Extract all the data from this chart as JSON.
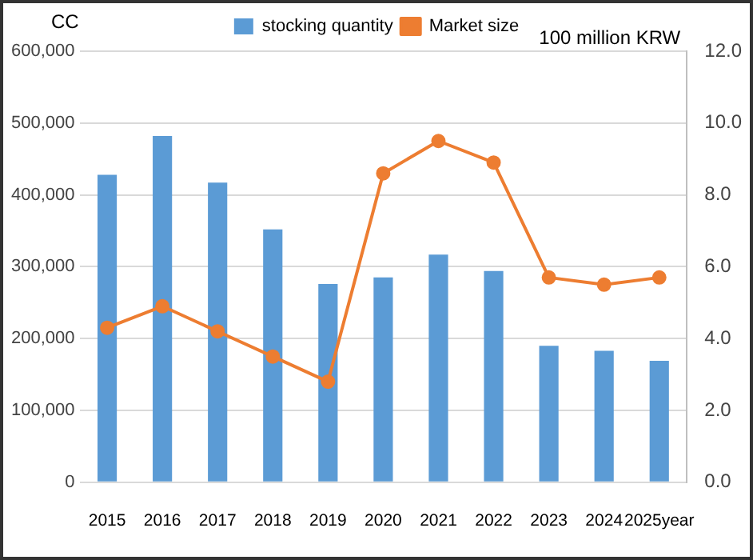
{
  "chart_data": {
    "type": "bar",
    "categories": [
      "2015",
      "2016",
      "2017",
      "2018",
      "2019",
      "2020",
      "2021",
      "2022",
      "2023",
      "2024",
      "2025year"
    ],
    "series": [
      {
        "name": "stocking quantity",
        "color": "#5b9bd5",
        "values": [
          428000,
          482000,
          417000,
          352000,
          276000,
          285000,
          317000,
          294000,
          190000,
          183000,
          169000
        ]
      },
      {
        "name": "Market size",
        "type": "line",
        "axis": "y2",
        "color": "#ed7d31",
        "values": [
          4.3,
          4.9,
          4.2,
          3.5,
          2.8,
          8.6,
          9.5,
          8.9,
          5.7,
          5.5,
          5.7
        ]
      }
    ],
    "ylabel": "CC",
    "y2label": "100 million KRW",
    "ylim": [
      0,
      600000
    ],
    "yticks": [
      {
        "value": 0,
        "label": "0"
      },
      {
        "value": 100000,
        "label": "100,000"
      },
      {
        "value": 200000,
        "label": "200,000"
      },
      {
        "value": 300000,
        "label": "300,000"
      },
      {
        "value": 400000,
        "label": "400,000"
      },
      {
        "value": 500000,
        "label": "500,000"
      },
      {
        "value": 600000,
        "label": "600,000"
      }
    ],
    "y2lim": [
      0,
      12
    ],
    "y2ticks": [
      {
        "value": 0,
        "label": "0.0"
      },
      {
        "value": 2,
        "label": "2.0"
      },
      {
        "value": 4,
        "label": "4.0"
      },
      {
        "value": 6,
        "label": "6.0"
      },
      {
        "value": 8,
        "label": "8.0"
      },
      {
        "value": 10,
        "label": "10.0"
      },
      {
        "value": 12,
        "label": "12.0"
      }
    ],
    "grid": "y",
    "legend": "top",
    "marker": "circle"
  }
}
